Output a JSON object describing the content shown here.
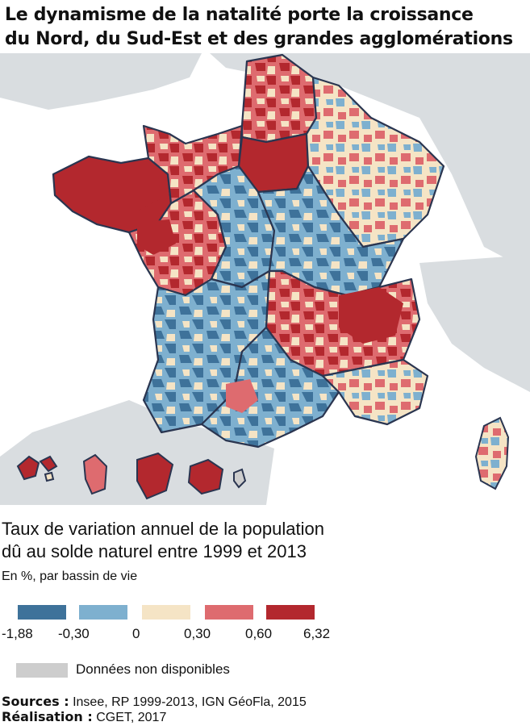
{
  "title_line1": "Le dynamisme de la natalité porte la croissance",
  "title_line2": "du Nord, du Sud-Est et des grandes agglomérations",
  "legend": {
    "title_line1": "Taux de variation annuel de la population",
    "title_line2": "dû au solde naturel entre 1999 et 2013",
    "subtitle": "En %, par bassin de vie",
    "classes": [
      {
        "color": "#3e729a"
      },
      {
        "color": "#7eb0cf"
      },
      {
        "color": "#f5e4c5"
      },
      {
        "color": "#de6b6f"
      },
      {
        "color": "#b3282e"
      }
    ],
    "breaks": [
      "-1,88",
      "-0,30",
      "0",
      "0,30",
      "0,60",
      "6,32"
    ],
    "na_color": "#cdcdcd",
    "na_label": "Données non disponibles"
  },
  "sources": {
    "sources_label": "Sources :",
    "sources_text": " Insee, RP 1999-2013, IGN GéoFla, 2015",
    "realisation_label": "Réalisation :",
    "realisation_text": " CGET, 2017"
  },
  "colors": {
    "sea": "#ffffff",
    "neighbors": "#d9dde0",
    "borders": "#2a3550",
    "very_low": "#3e729a",
    "low": "#7eb0cf",
    "neutral": "#f5e4c5",
    "high": "#de6b6f",
    "very_high": "#b3282e"
  },
  "map_regions": [
    {
      "name": "brittany",
      "class": 4
    },
    {
      "name": "pays-de-la-loire",
      "class": 3
    },
    {
      "name": "centre",
      "class": 0
    },
    {
      "name": "ile-de-france",
      "class": 4
    },
    {
      "name": "hauts-de-france",
      "class": 3
    },
    {
      "name": "grand-est",
      "class": 2
    },
    {
      "name": "bourgogne-franche-comte",
      "class": 0
    },
    {
      "name": "auvergne-rhone-alpes",
      "class": 4
    },
    {
      "name": "nouvelle-aquitaine",
      "class": 0
    },
    {
      "name": "occitanie",
      "class": 1
    },
    {
      "name": "paca",
      "class": 2
    },
    {
      "name": "corsica",
      "class": 1
    }
  ]
}
